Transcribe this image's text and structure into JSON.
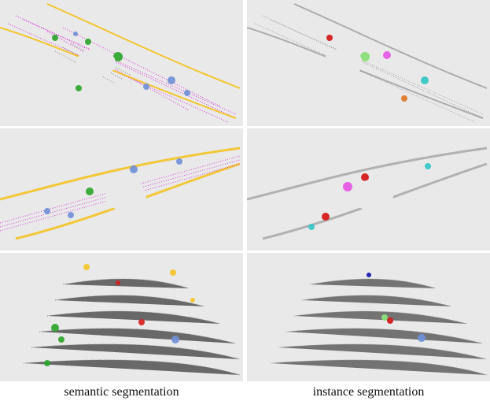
{
  "captions": {
    "left": "semantic segmentation",
    "right": "instance segmentation"
  },
  "colors": {
    "background": "#e9e9e9",
    "road": "#d600d6",
    "ground_scan": "#444444",
    "sidewalk_yellow": "#f4c21a",
    "vegetation_green": "#2aa52a",
    "car_blue": "#6f8fd8",
    "building_gray": "#8c8c8c",
    "instance_red": "#d61c1c",
    "instance_magenta": "#e55be5",
    "instance_darkblue": "#1a1ab0",
    "instance_teal": "#39c7c7",
    "instance_orange": "#e27a2e",
    "instance_lime": "#8be07a"
  }
}
